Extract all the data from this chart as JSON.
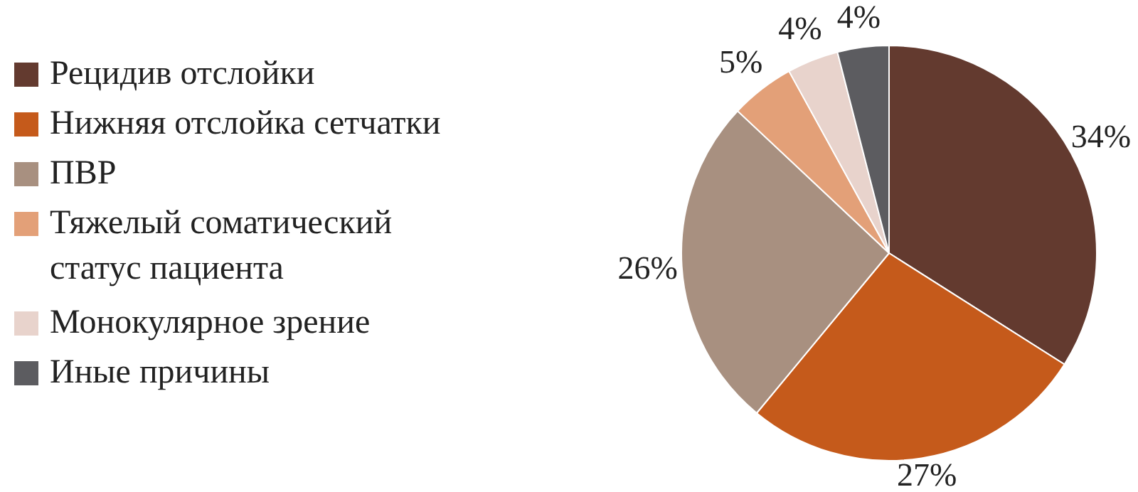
{
  "chart_data": {
    "type": "pie",
    "categories": [
      "Рецидив отслойки",
      "Нижняя отслойка сетчатки",
      "ПВР",
      "Тяжелый соматический статус пациента",
      "Монокулярное зрение",
      "Иные причины"
    ],
    "values": [
      34,
      27,
      26,
      5,
      4,
      4
    ],
    "colors": [
      "#633a2f",
      "#c55a1b",
      "#a89080",
      "#e3a078",
      "#e8d3cc",
      "#5c5c60"
    ],
    "value_labels": [
      "34%",
      "27%",
      "26%",
      "5%",
      "4%",
      "4%"
    ],
    "legend": "left"
  }
}
